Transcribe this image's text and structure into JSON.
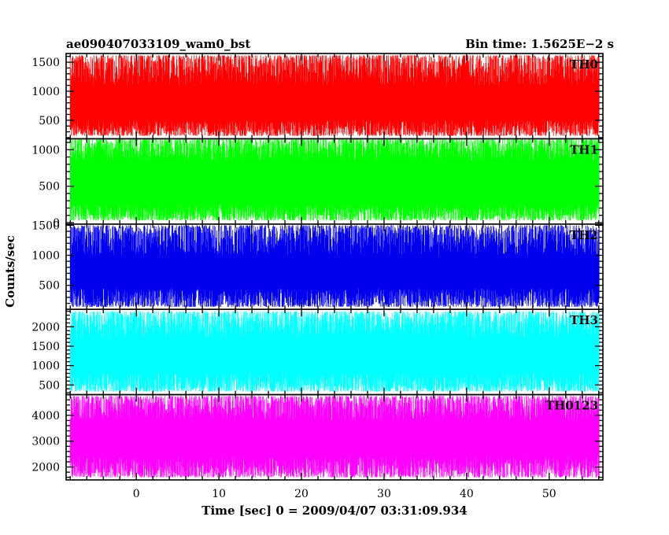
{
  "header": {
    "title": "ae090407033109_wam0_bst",
    "bin_time": "Bin time: 1.5625E−2 s"
  },
  "chart_data": {
    "type": "line",
    "x": {
      "label": "Time [sec] 0 = 2009/04/07 03:31:09.934",
      "range": [
        -8.5,
        56.5
      ],
      "data_range": [
        -8,
        56
      ],
      "ticks": [
        0,
        10,
        20,
        30,
        40,
        50
      ],
      "minor_step": 2
    },
    "ylabel": "Counts/sec",
    "grid": false,
    "panels": [
      {
        "name": "TH0",
        "color": "#ff0000",
        "ylim": [
          180,
          1650
        ],
        "ticks": [
          500,
          1000,
          1500
        ],
        "minor_step": 100,
        "band": [
          230,
          1620
        ],
        "core": [
          500,
          1100
        ]
      },
      {
        "name": "TH1",
        "color": "#00ff00",
        "ylim": [
          -20,
          1150
        ],
        "ticks": [
          0,
          500,
          1000
        ],
        "minor_step": 100,
        "band": [
          30,
          1150
        ],
        "core": [
          250,
          850
        ]
      },
      {
        "name": "TH2",
        "color": "#0000ee",
        "ylim": [
          100,
          1520
        ],
        "ticks": [
          500,
          1000,
          1500
        ],
        "minor_step": 100,
        "band": [
          140,
          1500
        ],
        "core": [
          450,
          1000
        ]
      },
      {
        "name": "TH3",
        "color": "#00ffff",
        "ylim": [
          250,
          2450
        ],
        "ticks": [
          500,
          1000,
          1500,
          2000
        ],
        "minor_step": 100,
        "band": [
          330,
          2400
        ],
        "core": [
          800,
          1700
        ]
      },
      {
        "name": "TH0123",
        "color": "#ff00ff",
        "ylim": [
          1500,
          4800
        ],
        "ticks": [
          2000,
          3000,
          4000
        ],
        "minor_step": 200,
        "band": [
          1600,
          4750
        ],
        "core": [
          2400,
          3800
        ]
      }
    ]
  }
}
